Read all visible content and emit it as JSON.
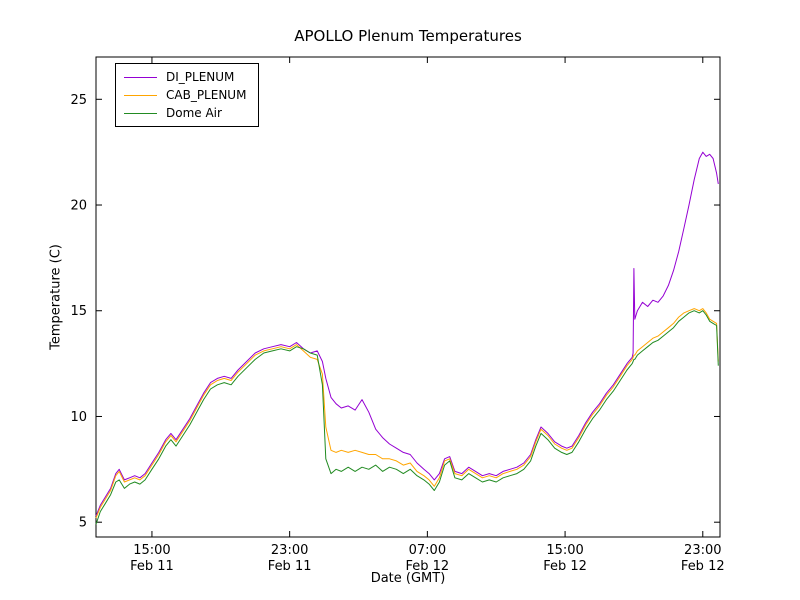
{
  "chart_data": {
    "type": "line",
    "title": "APOLLO Plenum Temperatures",
    "xlabel": "Date (GMT)",
    "ylabel": "Temperature (C)",
    "grid": false,
    "legend_position": "upper left",
    "x_unit": "hours since Feb 11 00:00 GMT",
    "xlim": [
      11.75,
      48.0
    ],
    "ylim": [
      4.3,
      27.0
    ],
    "y_ticks": [
      5,
      10,
      15,
      20,
      25
    ],
    "x_ticks": [
      {
        "value": 15,
        "time": "15:00",
        "date": "Feb 11"
      },
      {
        "value": 23,
        "time": "23:00",
        "date": "Feb 11"
      },
      {
        "value": 31,
        "time": "07:00",
        "date": "Feb 12"
      },
      {
        "value": 39,
        "time": "15:00",
        "date": "Feb 12"
      },
      {
        "value": 47,
        "time": "23:00",
        "date": "Feb 12"
      }
    ],
    "x": [
      11.75,
      12.0,
      12.3,
      12.6,
      12.9,
      13.1,
      13.4,
      13.7,
      14.0,
      14.3,
      14.6,
      15.0,
      15.4,
      15.8,
      16.1,
      16.4,
      16.8,
      17.2,
      17.6,
      18.0,
      18.4,
      18.8,
      19.2,
      19.6,
      20.0,
      20.5,
      21.0,
      21.5,
      22.0,
      22.5,
      23.0,
      23.4,
      23.8,
      24.2,
      24.6,
      24.9,
      25.1,
      25.4,
      25.7,
      26.0,
      26.4,
      26.8,
      27.2,
      27.6,
      28.0,
      28.4,
      28.8,
      29.2,
      29.6,
      30.0,
      30.4,
      30.8,
      31.1,
      31.4,
      31.7,
      32.0,
      32.3,
      32.6,
      33.0,
      33.4,
      33.8,
      34.2,
      34.6,
      35.0,
      35.4,
      35.8,
      36.2,
      36.6,
      37.0,
      37.3,
      37.6,
      38.0,
      38.4,
      38.8,
      39.1,
      39.4,
      39.8,
      40.2,
      40.6,
      41.0,
      41.4,
      41.8,
      42.2,
      42.6,
      42.9,
      42.95,
      43.0,
      43.05,
      43.2,
      43.5,
      43.8,
      44.1,
      44.4,
      44.7,
      45.0,
      45.3,
      45.6,
      45.9,
      46.2,
      46.5,
      46.8,
      47.0,
      47.2,
      47.4,
      47.6,
      47.8,
      47.9
    ],
    "series": [
      {
        "name": "DI_PLENUM",
        "color": "#9400D3",
        "values": [
          5.3,
          5.8,
          6.2,
          6.6,
          7.3,
          7.5,
          7.0,
          7.1,
          7.2,
          7.1,
          7.3,
          7.8,
          8.3,
          8.9,
          9.2,
          8.9,
          9.4,
          9.9,
          10.5,
          11.1,
          11.6,
          11.8,
          11.9,
          11.8,
          12.2,
          12.6,
          13.0,
          13.2,
          13.3,
          13.4,
          13.3,
          13.5,
          13.2,
          13.0,
          13.1,
          12.6,
          11.8,
          10.9,
          10.6,
          10.4,
          10.5,
          10.3,
          10.8,
          10.2,
          9.4,
          9.0,
          8.7,
          8.5,
          8.3,
          8.2,
          7.8,
          7.5,
          7.3,
          7.0,
          7.3,
          8.0,
          8.1,
          7.4,
          7.3,
          7.6,
          7.4,
          7.2,
          7.3,
          7.2,
          7.4,
          7.5,
          7.6,
          7.8,
          8.2,
          8.9,
          9.5,
          9.2,
          8.8,
          8.6,
          8.5,
          8.6,
          9.1,
          9.7,
          10.2,
          10.6,
          11.1,
          11.5,
          12.0,
          12.5,
          12.8,
          13.0,
          17.0,
          14.6,
          15.0,
          15.4,
          15.2,
          15.5,
          15.4,
          15.7,
          16.2,
          16.9,
          17.8,
          18.9,
          20.0,
          21.2,
          22.2,
          22.5,
          22.3,
          22.4,
          22.2,
          21.5,
          21.0
        ]
      },
      {
        "name": "CAB_PLENUM",
        "color": "#FFA500",
        "values": [
          5.2,
          5.7,
          6.1,
          6.5,
          7.2,
          7.4,
          6.9,
          7.0,
          7.1,
          7.0,
          7.2,
          7.7,
          8.2,
          8.8,
          9.1,
          8.8,
          9.3,
          9.8,
          10.4,
          11.0,
          11.5,
          11.7,
          11.8,
          11.7,
          12.1,
          12.5,
          12.9,
          13.1,
          13.2,
          13.3,
          13.2,
          13.4,
          13.1,
          12.8,
          12.7,
          12.0,
          9.5,
          8.4,
          8.3,
          8.4,
          8.3,
          8.4,
          8.3,
          8.2,
          8.2,
          8.0,
          8.0,
          7.9,
          7.7,
          7.8,
          7.4,
          7.2,
          7.0,
          6.7,
          7.1,
          7.9,
          8.0,
          7.3,
          7.2,
          7.5,
          7.3,
          7.1,
          7.2,
          7.1,
          7.3,
          7.4,
          7.5,
          7.7,
          8.1,
          8.8,
          9.4,
          9.1,
          8.7,
          8.5,
          8.4,
          8.5,
          9.0,
          9.6,
          10.1,
          10.5,
          11.0,
          11.4,
          11.9,
          12.4,
          12.7,
          12.8,
          12.9,
          12.9,
          13.1,
          13.3,
          13.5,
          13.7,
          13.8,
          14.0,
          14.2,
          14.4,
          14.7,
          14.9,
          15.0,
          15.1,
          15.0,
          15.1,
          14.9,
          14.6,
          14.5,
          14.4,
          12.6
        ]
      },
      {
        "name": "Dome Air",
        "color": "#228B22",
        "values": [
          4.9,
          5.5,
          5.9,
          6.3,
          6.9,
          7.0,
          6.6,
          6.8,
          6.9,
          6.8,
          7.0,
          7.5,
          8.0,
          8.6,
          8.9,
          8.6,
          9.1,
          9.6,
          10.2,
          10.8,
          11.3,
          11.5,
          11.6,
          11.5,
          11.9,
          12.3,
          12.7,
          13.0,
          13.1,
          13.2,
          13.1,
          13.3,
          13.2,
          13.0,
          12.9,
          11.5,
          8.0,
          7.3,
          7.5,
          7.4,
          7.6,
          7.4,
          7.6,
          7.5,
          7.7,
          7.4,
          7.6,
          7.5,
          7.3,
          7.5,
          7.2,
          7.0,
          6.8,
          6.5,
          6.9,
          7.7,
          7.9,
          7.1,
          7.0,
          7.3,
          7.1,
          6.9,
          7.0,
          6.9,
          7.1,
          7.2,
          7.3,
          7.5,
          7.9,
          8.6,
          9.2,
          8.9,
          8.5,
          8.3,
          8.2,
          8.3,
          8.8,
          9.4,
          9.9,
          10.3,
          10.8,
          11.2,
          11.7,
          12.2,
          12.5,
          12.6,
          12.7,
          12.7,
          12.9,
          13.1,
          13.3,
          13.5,
          13.6,
          13.8,
          14.0,
          14.2,
          14.5,
          14.7,
          14.9,
          15.0,
          14.9,
          15.0,
          14.8,
          14.5,
          14.4,
          14.3,
          12.4
        ]
      }
    ]
  }
}
